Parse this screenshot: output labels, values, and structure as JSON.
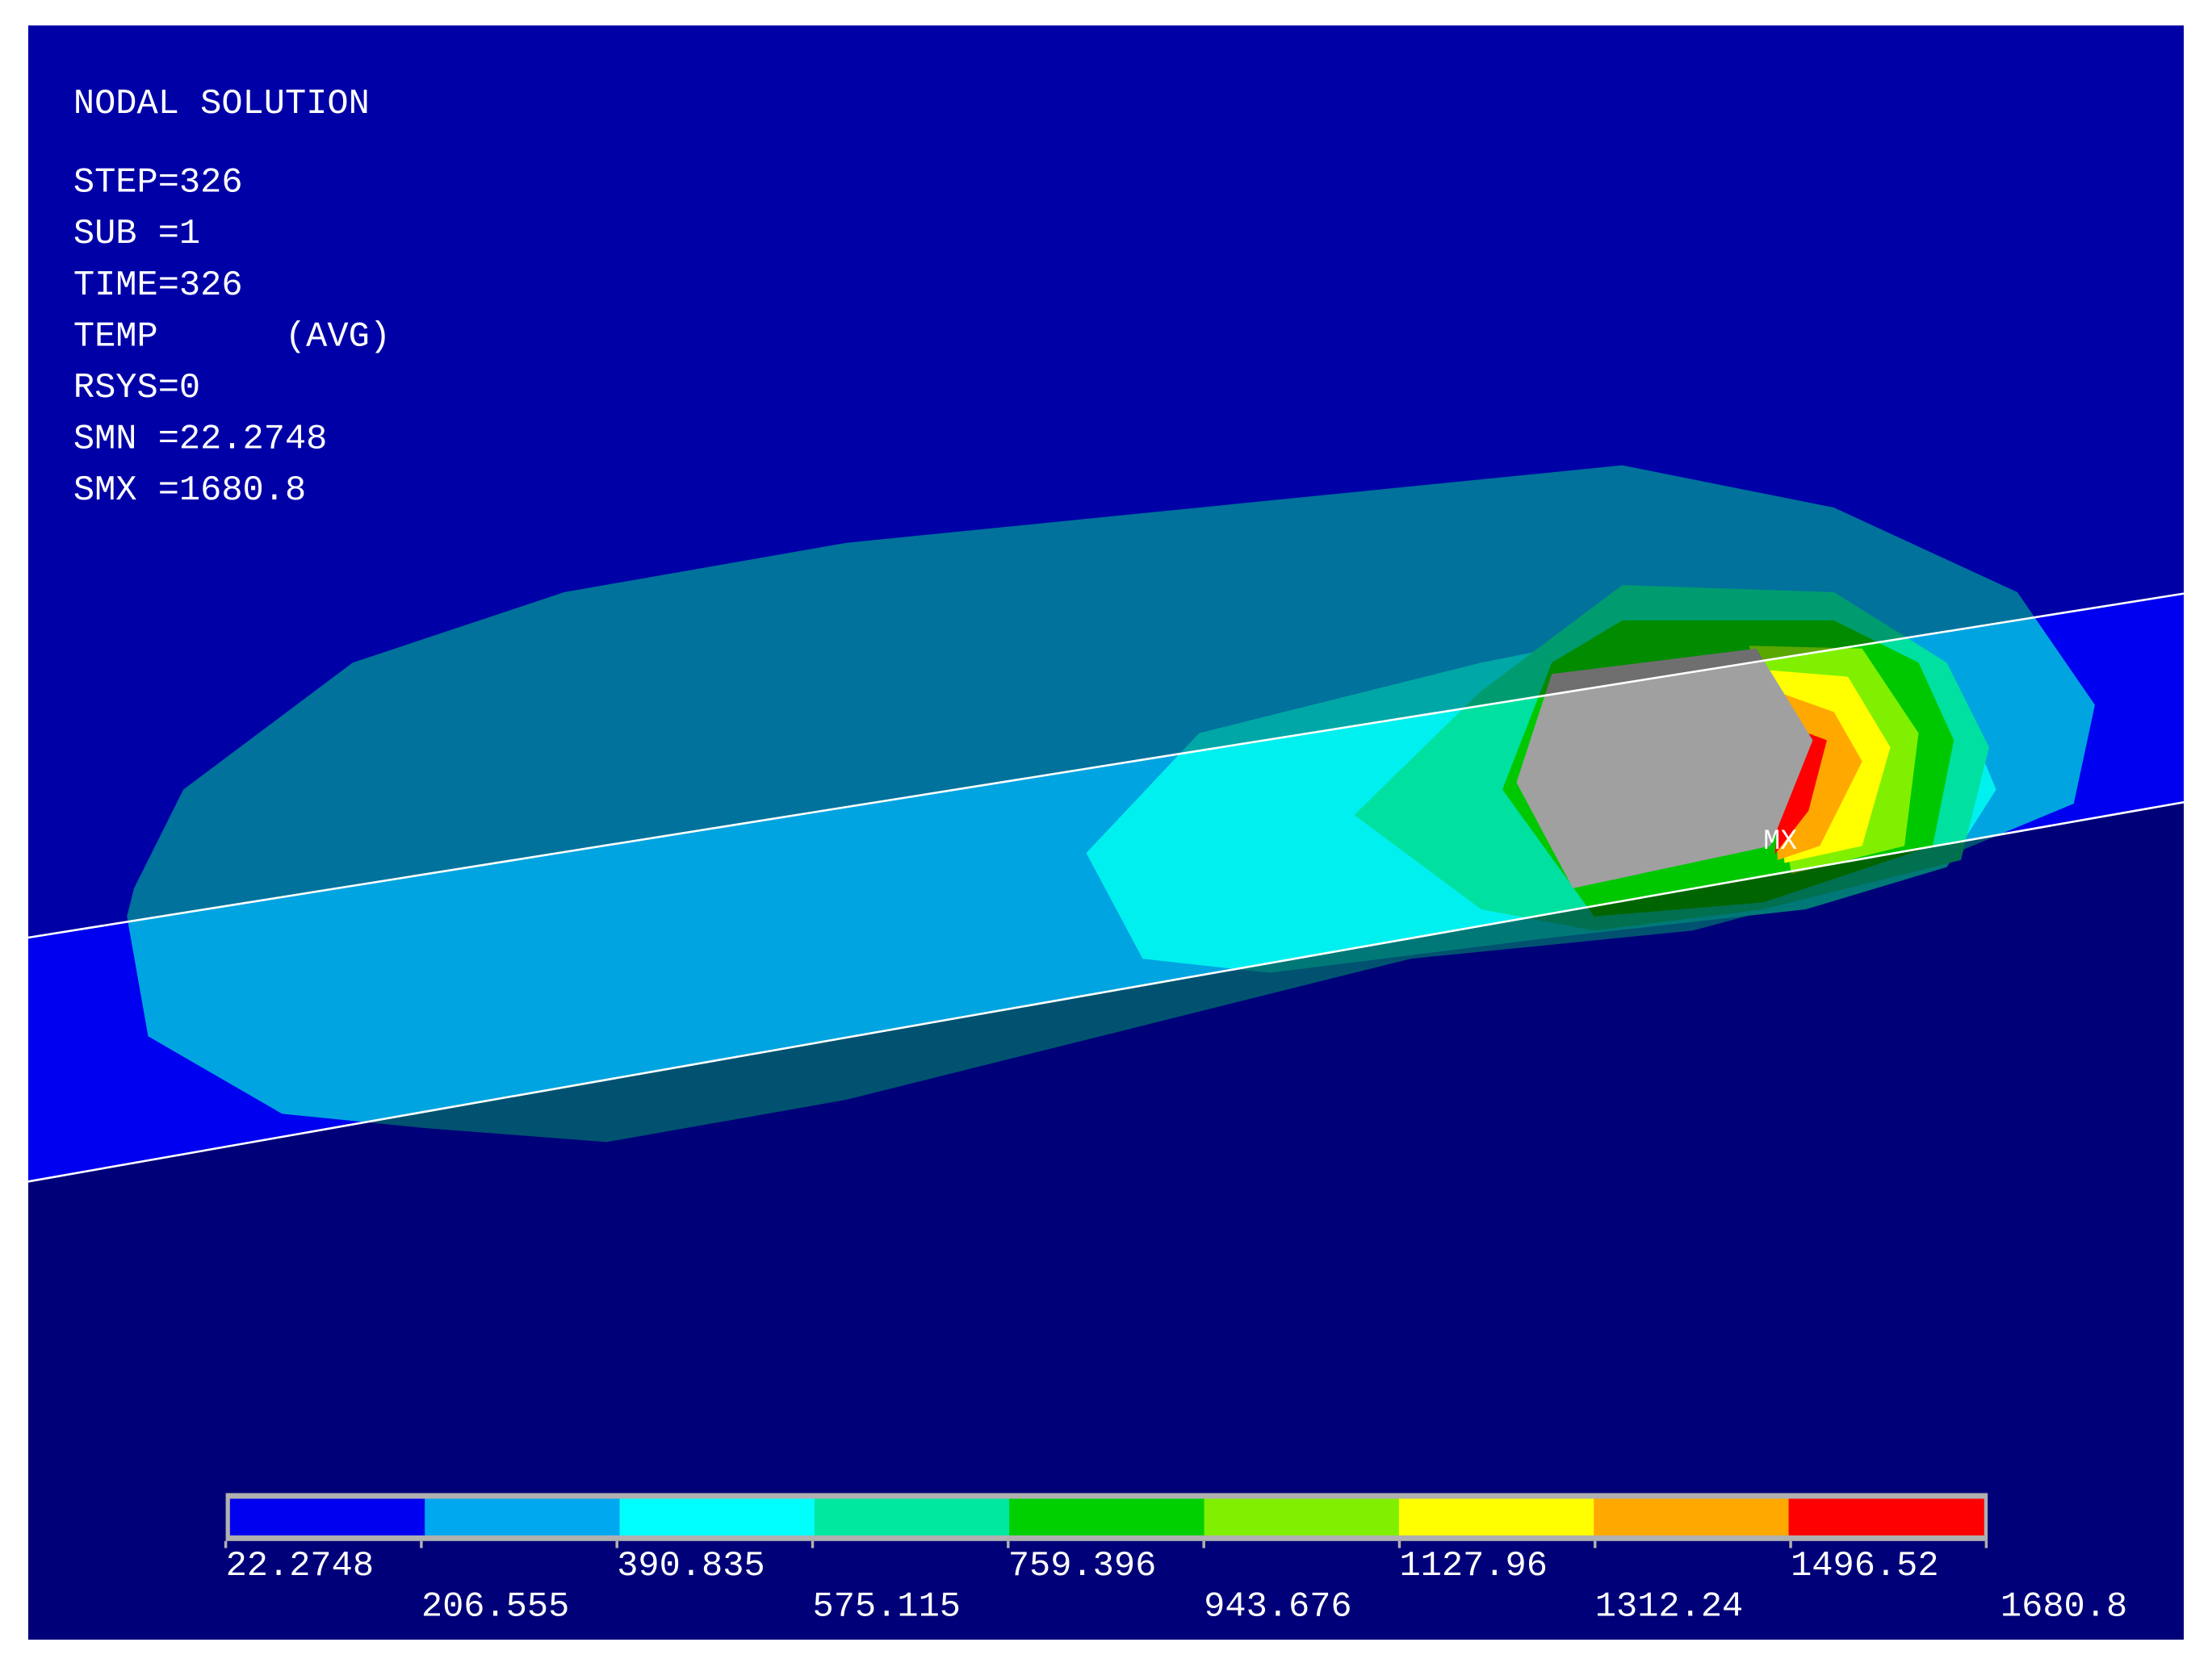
{
  "info": {
    "title": "NODAL SOLUTION",
    "lines": [
      "STEP=326",
      "SUB =1",
      "TIME=326",
      "TEMP      (AVG)",
      "RSYS=0",
      "SMN =22.2748",
      "SMX =1680.8"
    ]
  },
  "max_label": "MX",
  "legend": {
    "colors": [
      "#0000f0",
      "#00a8f0",
      "#00ffff",
      "#00e8a0",
      "#00d000",
      "#80f000",
      "#ffff00",
      "#ffa800",
      "#ff0000"
    ],
    "labels": [
      "22.2748",
      "206.555",
      "390.835",
      "575.115",
      "759.396",
      "943.676",
      "1127.96",
      "1312.24",
      "1496.52",
      "1680.8"
    ]
  }
}
